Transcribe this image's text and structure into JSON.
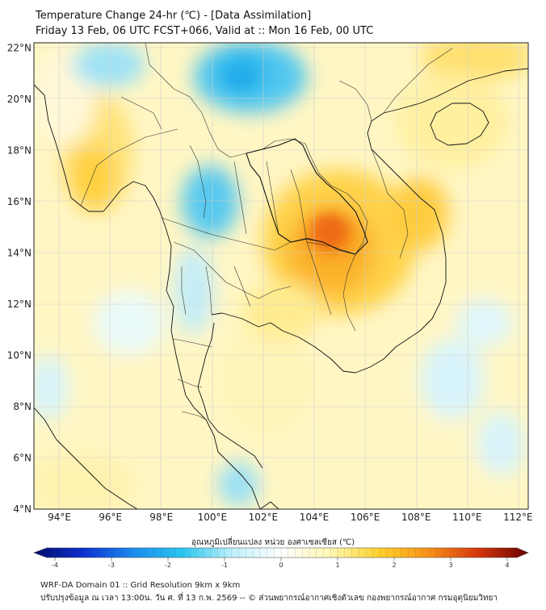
{
  "header": {
    "title_line1": "Temperature Change 24-hr (℃) - [Data Assimilation]",
    "title_line2": "Friday 13 Feb, 06 UTC FCST+066, Valid at :: Mon 16 Feb, 00 UTC"
  },
  "map": {
    "lat_labels": [
      "22°N",
      "20°N",
      "18°N",
      "16°N",
      "14°N",
      "12°N",
      "10°N",
      "8°N",
      "6°N",
      "4°N"
    ],
    "lon_labels": [
      "94°E",
      "96°E",
      "98°E",
      "100°E",
      "102°E",
      "104°E",
      "106°E",
      "108°E",
      "110°E",
      "112°E"
    ],
    "lat_values": [
      22,
      20,
      18,
      16,
      14,
      12,
      10,
      8,
      6,
      4
    ],
    "lon_values": [
      94,
      96,
      98,
      100,
      102,
      104,
      106,
      108,
      110,
      112
    ],
    "colors": {
      "background_yellow": "#fffbd0",
      "warm_peak": "#f06a10",
      "cold_peak": "#1fb0e8",
      "coastline": "#111111",
      "province": "#333333"
    }
  },
  "colorbar": {
    "title": "อุณหภูมิเปลี่ยนแปลง หน่วย องศาเซลเซียส (℃)",
    "ticks": [
      "-4",
      "-3",
      "-2",
      "-1",
      "0",
      "1",
      "2",
      "3",
      "4"
    ],
    "tick_values": [
      -4,
      -3,
      -2,
      -1,
      0,
      1,
      2,
      3,
      4
    ],
    "min": -4,
    "max": 4,
    "stops": [
      "#000c6b",
      "#0d2fd0",
      "#1a8cf0",
      "#29c6f2",
      "#bdf0fb",
      "#ffffff",
      "#fff7b0",
      "#ffd12a",
      "#f98f17",
      "#d5350c",
      "#6b0000"
    ]
  },
  "footer": {
    "line1": "WRF-DA Domain 01 :: Grid Resolution 9km x 9km",
    "line2": "ปรับปรุงข้อมูล ณ เวลา 13:00น. วัน ศ. ที่ 13 ก.พ. 2569 -- © ส่วนพยากรณ์อากาศเชิงตัวเลข กองพยากรณ์อากาศ กรมอุตุนิยมวิทยา"
  }
}
